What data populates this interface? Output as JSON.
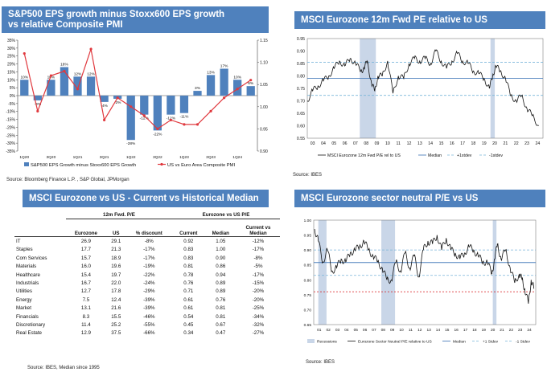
{
  "panels": {
    "p1": {
      "title_line1": "S&P500 EPS growth minus Stoxx600 EPS growth",
      "title_line2": "vs relative Composite PMI",
      "source": "Source: Bloomberg Finance L.P. , S&P Global, JPMorgan"
    },
    "p2": {
      "title": "MSCI Eurozone 12m Fwd PE relative to US",
      "source": "Source: IBES"
    },
    "p3": {
      "title": "MSCI Eurozone vs US - Current vs Historical Median",
      "source": "Source: IBES, Median since 1995"
    },
    "p4": {
      "title": "MSCI Eurozone sector neutral P/E vs US",
      "source": "Source: IBES"
    }
  },
  "colors": {
    "header": "#4f81bd",
    "bar": "#4f81bd",
    "red_line": "#e0393e",
    "median": "#4f81bd",
    "sd_line": "#7ab5d9",
    "recession": "#c9d6e8",
    "black": "#111111",
    "red_dash": "#d7191c"
  },
  "table": {
    "group1": "12m Fwd. P/E",
    "group2": "Eurozone vs US P/E",
    "headers": {
      "eurozone": "Eurozone",
      "us": "US",
      "discount": "% discount",
      "current": "Current",
      "median": "Median",
      "cvm_line1": "Current vs",
      "cvm_line2": "Median"
    },
    "rows": [
      {
        "name": "IT",
        "ez": "26.9",
        "us": "29.1",
        "disc": "-8%",
        "cur": "0.92",
        "med": "1.05",
        "cvm": "-12%"
      },
      {
        "name": "Staples",
        "ez": "17.7",
        "us": "21.3",
        "disc": "-17%",
        "cur": "0.83",
        "med": "1.00",
        "cvm": "-17%"
      },
      {
        "name": "Com Services",
        "ez": "15.7",
        "us": "18.9",
        "disc": "-17%",
        "cur": "0.83",
        "med": "0.90",
        "cvm": "-8%"
      },
      {
        "name": "Materials",
        "ez": "16.0",
        "us": "19.6",
        "disc": "-19%",
        "cur": "0.81",
        "med": "0.86",
        "cvm": "-5%"
      },
      {
        "name": "Healthcare",
        "ez": "15.4",
        "us": "19.7",
        "disc": "-22%",
        "cur": "0.78",
        "med": "0.94",
        "cvm": "-17%"
      },
      {
        "name": "Industrials",
        "ez": "16.7",
        "us": "22.0",
        "disc": "-24%",
        "cur": "0.76",
        "med": "0.89",
        "cvm": "-15%"
      },
      {
        "name": "Utilities",
        "ez": "12.7",
        "us": "17.8",
        "disc": "-29%",
        "cur": "0.71",
        "med": "0.89",
        "cvm": "-20%"
      },
      {
        "name": "Energy",
        "ez": "7.5",
        "us": "12.4",
        "disc": "-39%",
        "cur": "0.61",
        "med": "0.76",
        "cvm": "-20%"
      },
      {
        "name": "Market",
        "ez": "13.1",
        "us": "21.6",
        "disc": "-39%",
        "cur": "0.61",
        "med": "0.81",
        "cvm": "-25%"
      },
      {
        "name": "Financials",
        "ez": "8.3",
        "us": "15.5",
        "disc": "-46%",
        "cur": "0.54",
        "med": "0.81",
        "cvm": "-34%"
      },
      {
        "name": "Discretionary",
        "ez": "11.4",
        "us": "25.2",
        "disc": "-55%",
        "cur": "0.45",
        "med": "0.67",
        "cvm": "-32%"
      },
      {
        "name": "Real Estate",
        "ez": "12.9",
        "us": "37.5",
        "disc": "-66%",
        "cur": "0.34",
        "med": "0.47",
        "cvm": "-27%"
      }
    ]
  },
  "chart_data": [
    {
      "type": "bar",
      "title": "S&P500 EPS growth minus Stoxx600 EPS growth vs relative Composite PMI",
      "categories": [
        "1Q20",
        "2Q20",
        "3Q20",
        "4Q20",
        "1Q21",
        "2Q21",
        "3Q21",
        "4Q21",
        "1Q22",
        "2Q22",
        "3Q22",
        "4Q22",
        "1Q23",
        "2Q23",
        "3Q23",
        "4Q23",
        "1Q24",
        "2Q24"
      ],
      "x_tick_labels": [
        "1Q20",
        "3Q20",
        "1Q21",
        "3Q21",
        "1Q22",
        "3Q22",
        "1Q23",
        "3Q23",
        "1Q24"
      ],
      "series": [
        {
          "name": "S&P500 EPS Growth minus Stoxx600 EPS Growth",
          "axis": "left",
          "values": [
            10,
            -3,
            10,
            18,
            12,
            12,
            -4,
            -2,
            -28,
            -12,
            -22,
            -12,
            -11,
            3,
            13,
            17,
            10,
            6
          ],
          "labels": [
            "10%",
            "-3%",
            "10%",
            "18%",
            "12%",
            "12%",
            "-4%",
            "-2%",
            "-28%",
            "-12%",
            "-22%",
            "-12%",
            "-11%",
            "3%",
            "13%",
            "17%",
            "10%",
            "6%"
          ]
        },
        {
          "name": "US vs Euro Area Composite PMI",
          "axis": "right",
          "values": [
            1.12,
            0.99,
            1.07,
            1.08,
            1.04,
            1.13,
            0.97,
            1.02,
            1.0,
            0.98,
            0.95,
            0.97,
            0.96,
            0.96,
            0.99,
            1.02,
            1.04,
            1.06
          ]
        }
      ],
      "ylim": [
        -35,
        35
      ],
      "yticks": [
        "35%",
        "30%",
        "25%",
        "20%",
        "15%",
        "10%",
        "5%",
        "0%",
        "-5%",
        "-10%",
        "-15%",
        "-20%",
        "-25%",
        "-30%",
        "-35%"
      ],
      "y2lim": [
        0.9,
        1.15
      ],
      "y2ticks": [
        "1.15",
        "1.10",
        "1.05",
        "1.00",
        "0.95",
        "0.90"
      ],
      "legend_bar": "S&P500 EPS Growth minus Stoxx600 EPS Growth",
      "legend_line": "US vs Euro Area Composite PMI"
    },
    {
      "type": "line",
      "title": "MSCI Eurozone 12m Fwd PE relative to US",
      "x_tick_labels": [
        "03",
        "04",
        "05",
        "06",
        "07",
        "08",
        "09",
        "10",
        "11",
        "12",
        "13",
        "14",
        "15",
        "16",
        "17",
        "18",
        "19",
        "20",
        "21",
        "22",
        "23",
        "24"
      ],
      "xlim": [
        2003,
        2025
      ],
      "ylim": [
        0.55,
        0.95
      ],
      "yticks": [
        "0.95",
        "0.90",
        "0.85",
        "0.80",
        "0.75",
        "0.70",
        "0.65",
        "0.60",
        "0.55"
      ],
      "median": 0.79,
      "plus_1sd": 0.855,
      "minus_1sd": 0.722,
      "recessions": [
        [
          2007.9,
          2009.4
        ],
        [
          2020.1,
          2020.5
        ]
      ],
      "series": [
        {
          "name": "MSCI Eurozone 12m Fwd P/E rel to US",
          "x": [
            2003,
            2003.5,
            2004,
            2004.5,
            2005,
            2005.5,
            2006,
            2006.5,
            2007,
            2007.5,
            2008,
            2008.3,
            2008.6,
            2009,
            2009.3,
            2009.6,
            2010,
            2010.5,
            2011,
            2011.5,
            2012,
            2012.5,
            2013,
            2013.5,
            2014,
            2014.5,
            2015,
            2015.5,
            2016,
            2016.5,
            2017,
            2017.5,
            2018,
            2018.5,
            2019,
            2019.5,
            2020,
            2020.3,
            2020.6,
            2021,
            2021.5,
            2022,
            2022.5,
            2023,
            2023.5,
            2024,
            2024.6
          ],
          "values": [
            0.7,
            0.74,
            0.76,
            0.78,
            0.8,
            0.83,
            0.86,
            0.84,
            0.87,
            0.85,
            0.82,
            0.83,
            0.86,
            0.77,
            0.74,
            0.8,
            0.8,
            0.86,
            0.73,
            0.8,
            0.79,
            0.85,
            0.87,
            0.86,
            0.87,
            0.85,
            0.9,
            0.86,
            0.83,
            0.86,
            0.89,
            0.86,
            0.85,
            0.82,
            0.81,
            0.79,
            0.75,
            0.8,
            0.84,
            0.82,
            0.79,
            0.72,
            0.7,
            0.72,
            0.67,
            0.64,
            0.6
          ]
        }
      ],
      "legend": [
        "MSCI Eurozone 12m Fwd P/E rel to US",
        "Median",
        "+1stdev",
        "-1stdev"
      ]
    },
    {
      "type": "line",
      "title": "MSCI Eurozone sector neutral P/E vs US",
      "x_tick_labels": [
        "01",
        "02",
        "03",
        "04",
        "05",
        "06",
        "07",
        "08",
        "09",
        "10",
        "11",
        "12",
        "13",
        "14",
        "15",
        "16",
        "17",
        "18",
        "19",
        "20",
        "21",
        "22",
        "23",
        "24"
      ],
      "xlim": [
        2000.5,
        2024.8
      ],
      "ylim": [
        0.65,
        1.0
      ],
      "yticks": [
        "1.00",
        "0.95",
        "0.90",
        "0.85",
        "0.80",
        "0.75",
        "0.70",
        "0.65"
      ],
      "median": 0.858,
      "plus_1sd": 0.9,
      "minus_1sd": 0.815,
      "red_dashed": 0.76,
      "recessions": [
        [
          2001.0,
          2001.9
        ],
        [
          2007.9,
          2009.4
        ],
        [
          2020.1,
          2020.5
        ]
      ],
      "series": [
        {
          "name": "Eurozone Sector Neutral P/E relative to US",
          "x": [
            2000.6,
            2001,
            2001.5,
            2002,
            2002.5,
            2003,
            2003.5,
            2004,
            2004.5,
            2005,
            2005.5,
            2006,
            2006.5,
            2007,
            2007.5,
            2008,
            2008.5,
            2009,
            2009.5,
            2010,
            2010.5,
            2011,
            2011.5,
            2012,
            2012.5,
            2013,
            2013.5,
            2014,
            2014.5,
            2015,
            2015.5,
            2016,
            2016.5,
            2017,
            2017.5,
            2018,
            2018.5,
            2019,
            2019.5,
            2020,
            2020.3,
            2020.6,
            2021,
            2021.5,
            2022,
            2022.5,
            2023,
            2023.3,
            2023.6,
            2024,
            2024.3,
            2024.6
          ],
          "values": [
            0.97,
            0.93,
            0.86,
            0.9,
            0.83,
            0.84,
            0.87,
            0.86,
            0.89,
            0.9,
            0.91,
            0.93,
            0.9,
            0.88,
            0.86,
            0.84,
            0.8,
            0.8,
            0.86,
            0.83,
            0.89,
            0.84,
            0.88,
            0.81,
            0.9,
            0.93,
            0.92,
            0.95,
            0.9,
            0.94,
            0.9,
            0.89,
            0.87,
            0.89,
            0.91,
            0.9,
            0.88,
            0.86,
            0.86,
            0.82,
            0.87,
            0.92,
            0.87,
            0.9,
            0.84,
            0.79,
            0.82,
            0.8,
            0.77,
            0.72,
            0.8,
            0.77
          ]
        }
      ],
      "legend": [
        "Recessions",
        "Eurozone Sector Neutral P/E relative to US",
        "Median",
        "+1 Stdev",
        "-1 Stdev"
      ]
    }
  ]
}
